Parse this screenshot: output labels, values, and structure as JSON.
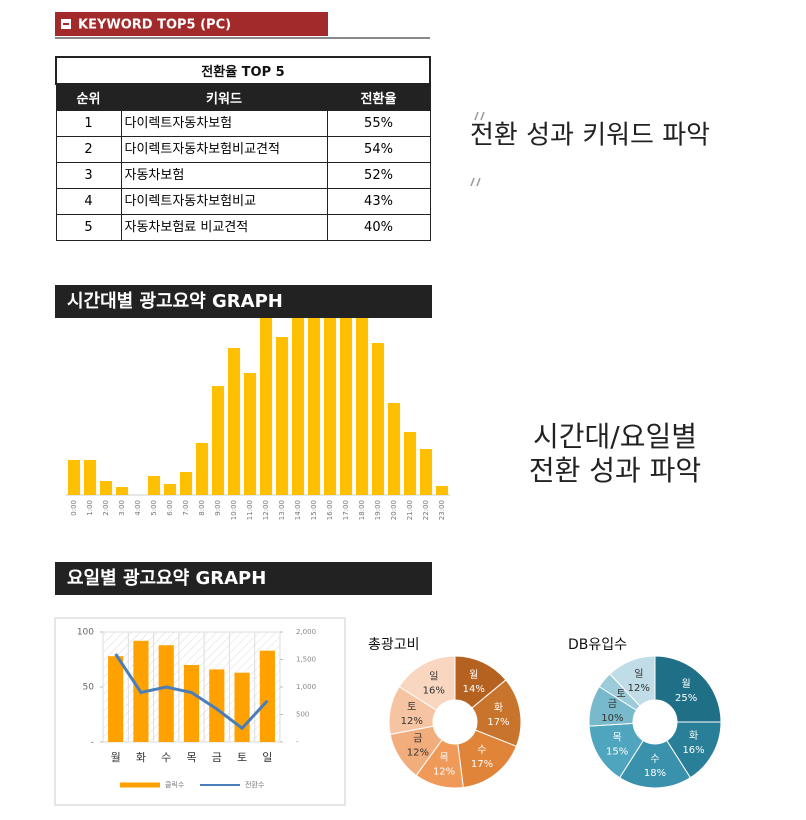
{
  "header": {
    "title": "KEYWORD  TOP5 (PC)"
  },
  "table": {
    "title": "전환율 TOP 5",
    "columns": [
      "순위",
      "키워드",
      "전환율"
    ],
    "rows": [
      [
        "1",
        "다이렉트자동차보험",
        "55%"
      ],
      [
        "2",
        "다이렉트자동차보험비교견적",
        "54%"
      ],
      [
        "3",
        "자동차보험",
        "52%"
      ],
      [
        "4",
        "다이렉트자동차보험비교",
        "43%"
      ],
      [
        "5",
        "자동차보험료 비교견적",
        "40%"
      ]
    ]
  },
  "notes": {
    "keyword_caption": "전환 성과 키워드 파악",
    "time_caption": [
      "시간대/요일별",
      "전환 성과 파악"
    ]
  },
  "chart_data": [
    {
      "type": "bar",
      "title": "시간대별 광고요약 GRAPH",
      "categories": [
        "0:00",
        "1:00",
        "2:00",
        "3:00",
        "4:00",
        "5:00",
        "6:00",
        "7:00",
        "8:00",
        "9:00",
        "10:00",
        "11:00",
        "12:00",
        "13:00",
        "14:00",
        "15:00",
        "16:00",
        "17:00",
        "18:00",
        "19:00",
        "20:00",
        "21:00",
        "22:00",
        "23:00"
      ],
      "values": [
        35,
        35,
        14,
        8,
        0,
        19,
        11,
        23,
        52,
        109,
        147,
        122,
        177,
        158,
        177,
        177,
        177,
        177,
        177,
        152,
        92,
        63,
        46,
        9
      ],
      "color": "#ffc000",
      "ylim": [
        0,
        177
      ]
    },
    {
      "type": "combo",
      "title": "요일별 광고요약 GRAPH",
      "categories": [
        "월",
        "화",
        "수",
        "목",
        "금",
        "토",
        "일"
      ],
      "series": [
        {
          "name": "클릭수",
          "kind": "bar",
          "color": "#ffa100",
          "values": [
            78,
            92,
            88,
            70,
            66,
            63,
            83
          ]
        },
        {
          "name": "전환수",
          "kind": "line",
          "axis": "y2",
          "color": "#4a7ebb",
          "values": [
            1600,
            900,
            1000,
            900,
            600,
            250,
            750
          ]
        }
      ],
      "ylim": [
        0,
        100
      ],
      "yticks": [
        {
          "value": 0,
          "label": "-"
        },
        50,
        100
      ],
      "y2lim": [
        0,
        2000
      ],
      "y2ticks": [
        {
          "value": 0,
          "label": "-"
        },
        500,
        {
          "value": 1000,
          "label": "1,000"
        },
        {
          "value": 1500,
          "label": "1,500"
        },
        {
          "value": 2000,
          "label": "2,000"
        }
      ],
      "legend": "bottom"
    },
    {
      "type": "pie",
      "title": "총광고비",
      "categories": [
        "월",
        "화",
        "수",
        "목",
        "금",
        "토",
        "일"
      ],
      "values": [
        14,
        17,
        17,
        12,
        12,
        12,
        16
      ],
      "value_labels": [
        "14%",
        "17%",
        "17%",
        "12%",
        "12%",
        "12%",
        "16%"
      ],
      "colors": [
        "#b5611f",
        "#c8742d",
        "#e0843a",
        "#ef9a58",
        "#f2ad7c",
        "#f6c4a2",
        "#f9d6c0"
      ]
    },
    {
      "type": "pie",
      "title": "DB유입수",
      "categories": [
        "월",
        "화",
        "수",
        "목",
        "금",
        "토",
        "일"
      ],
      "values": [
        25,
        16,
        18,
        15,
        10,
        4,
        12
      ],
      "value_labels": [
        "25%",
        "16%",
        "18%",
        "15%",
        "10%",
        null,
        "12%"
      ],
      "colors": [
        "#1f6f86",
        "#2a7f98",
        "#3a91ab",
        "#4fa5bd",
        "#78b9cc",
        "#9ccbd9",
        "#c0dde7"
      ]
    }
  ]
}
